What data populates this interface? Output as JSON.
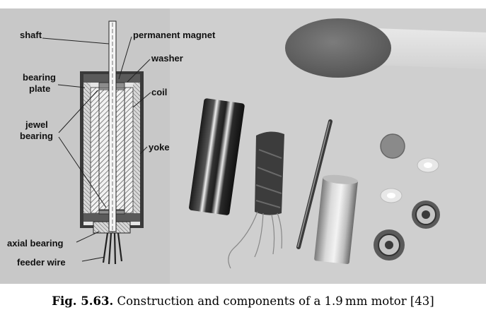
{
  "labels": {
    "shaft": "shaft",
    "permanent_magnet": "permanent magnet",
    "washer": "washer",
    "bearing_line1": "bearing",
    "bearing_line2": "plate",
    "coil": "coil",
    "jewel_line1": "jewel",
    "jewel_line2": "bearing",
    "yoke": "yoke",
    "axial_bearing": "axial bearing",
    "feeder_wire": "feeder wire"
  },
  "caption": {
    "number": "Fig. 5.63.",
    "text": "Construction and components of a 1.9 mm motor [43]"
  },
  "colors": {
    "photo_background": "#cfcfcf",
    "matchstick_head": "#6c6c6c",
    "magnet_disc": "#8a8a8a"
  }
}
